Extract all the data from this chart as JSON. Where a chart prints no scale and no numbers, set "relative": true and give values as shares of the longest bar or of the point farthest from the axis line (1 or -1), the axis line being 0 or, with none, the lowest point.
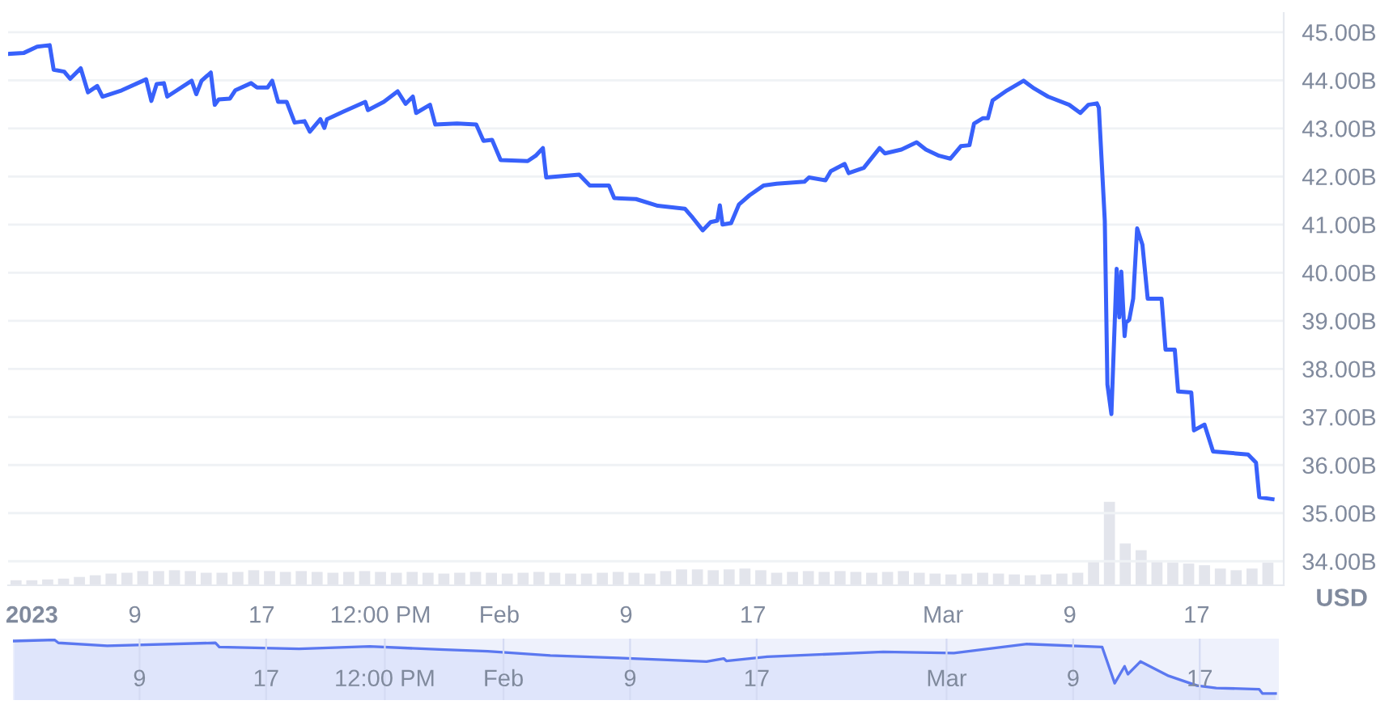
{
  "chart_data": [
    {
      "type": "line",
      "ylabel": "USD",
      "grid": "y",
      "x": [
        "2023-01-01T02:00",
        "2023-01-02T00:00",
        "2023-01-02T20:00",
        "2023-01-03T15:00",
        "2023-01-03T21:00",
        "2023-01-04T13:00",
        "2023-01-04T22:00",
        "2023-01-05T14:00",
        "2023-01-06T01:00",
        "2023-01-06T15:00",
        "2023-01-06T23:00",
        "2023-01-08T04:00",
        "2023-01-09T17:00",
        "2023-01-10T01:00",
        "2023-01-10T09:00",
        "2023-01-10T20:00",
        "2023-01-11T01:00",
        "2023-01-12T14:00",
        "2023-01-12T21:00",
        "2023-01-13T05:00",
        "2023-01-13T19:00",
        "2023-01-14T01:00",
        "2023-01-14T07:00",
        "2023-01-15T00:00",
        "2023-01-15T08:00",
        "2023-01-16T08:00",
        "2023-01-16T17:00",
        "2023-01-17T09:00",
        "2023-01-17T16:00",
        "2023-01-18T01:00",
        "2023-01-18T14:00",
        "2023-01-19T02:00",
        "2023-01-19T17:00",
        "2023-01-20T01:00",
        "2023-01-20T17:00",
        "2023-01-20T23:00",
        "2023-01-21T03:00",
        "2023-01-22T04:00",
        "2023-01-23T13:00",
        "2023-01-23T17:00",
        "2023-01-24T17:00",
        "2023-01-25T14:00",
        "2023-01-26T02:00",
        "2023-01-26T13:00",
        "2023-01-26T18:00",
        "2023-01-27T15:00",
        "2023-01-27T23:00",
        "2023-01-29T08:00",
        "2023-01-30T13:00",
        "2023-01-31T00:00",
        "2023-01-31T13:00",
        "2023-02-01T02:00",
        "2023-02-02T19:00",
        "2023-02-03T07:00",
        "2023-02-03T18:00",
        "2023-02-03T23:00",
        "2023-02-06T01:00",
        "2023-02-06T17:00",
        "2023-02-07T22:00",
        "2023-02-08T06:00",
        "2023-02-09T15:00",
        "2023-02-11T00:00",
        "2023-02-12T17:00",
        "2023-02-13T05:00",
        "2023-02-13T20:00",
        "2023-02-14T08:00",
        "2023-02-14T18:00",
        "2023-02-14T22:00",
        "2023-02-15T02:00",
        "2023-02-15T15:00",
        "2023-02-16T03:00",
        "2023-02-16T19:00",
        "2023-02-17T16:00",
        "2023-02-18T12:00",
        "2023-02-20T06:00",
        "2023-02-20T13:00",
        "2023-02-21T14:00",
        "2023-02-21T22:00",
        "2023-02-22T19:00",
        "2023-02-23T01:00",
        "2023-02-24T00:00",
        "2023-02-25T00:00",
        "2023-02-25T08:00",
        "2023-02-26T09:00",
        "2023-02-27T08:00",
        "2023-02-27T22:00",
        "2023-02-28T18:00",
        "2023-03-01T11:00",
        "2023-03-02T03:00",
        "2023-03-02T16:00",
        "2023-03-02T23:00",
        "2023-03-03T12:00",
        "2023-03-03T20:00",
        "2023-03-04T03:00",
        "2023-03-05T01:00",
        "2023-03-06T02:00",
        "2023-03-06T18:00",
        "2023-03-07T15:00",
        "2023-03-08T23:00",
        "2023-03-09T16:00",
        "2023-03-10T04:00",
        "2023-03-10T17:00",
        "2023-03-10T20:00",
        "2023-03-11T05:00",
        "2023-03-11T09:00",
        "2023-03-11T15:00",
        "2023-03-11T23:00",
        "2023-03-12T03:00",
        "2023-03-12T06:00",
        "2023-03-12T11:00",
        "2023-03-12T13:00",
        "2023-03-12T18:00",
        "2023-03-13T00:00",
        "2023-03-13T06:00",
        "2023-03-13T14:00",
        "2023-03-13T22:00",
        "2023-03-14T19:00",
        "2023-03-15T01:00",
        "2023-03-15T15:00",
        "2023-03-15T20:00",
        "2023-03-16T16:00",
        "2023-03-16T20:00",
        "2023-03-17T12:00",
        "2023-03-18T01:00",
        "2023-03-20T06:00",
        "2023-03-20T18:00",
        "2023-03-20T23:00",
        "2023-03-21T19:00"
      ],
      "series": [
        {
          "color": "#3861fb",
          "values": [
            44.55,
            44.57,
            44.7,
            44.73,
            44.22,
            44.18,
            44.03,
            44.25,
            43.75,
            43.88,
            43.66,
            43.79,
            44.02,
            43.57,
            43.92,
            43.94,
            43.66,
            43.99,
            43.71,
            43.99,
            44.16,
            43.49,
            43.6,
            43.62,
            43.79,
            43.94,
            43.85,
            43.85,
            43.99,
            43.55,
            43.55,
            43.12,
            43.15,
            42.93,
            43.19,
            43.01,
            43.19,
            43.35,
            43.55,
            43.38,
            43.55,
            43.77,
            43.51,
            43.66,
            43.32,
            43.49,
            43.08,
            43.1,
            43.08,
            42.74,
            42.76,
            42.34,
            42.32,
            42.43,
            42.59,
            41.98,
            42.04,
            41.81,
            41.81,
            41.55,
            41.53,
            41.39,
            41.33,
            41.14,
            40.88,
            41.05,
            41.08,
            41.4,
            41.0,
            41.03,
            41.42,
            41.61,
            41.81,
            41.85,
            41.89,
            41.98,
            41.92,
            42.11,
            42.26,
            42.07,
            42.18,
            42.59,
            42.48,
            42.56,
            42.71,
            42.56,
            42.43,
            42.37,
            42.63,
            42.65,
            43.1,
            43.21,
            43.21,
            43.58,
            43.79,
            43.99,
            43.83,
            43.66,
            43.49,
            43.32,
            43.49,
            43.52,
            43.43,
            41.08,
            37.67,
            37.06,
            40.08,
            39.07,
            40.02,
            38.68,
            38.96,
            39.02,
            39.46,
            40.92,
            40.58,
            39.46,
            39.46,
            38.4,
            38.4,
            37.53,
            37.51,
            36.72,
            36.84,
            36.28,
            36.22,
            36.05,
            35.33,
            35.29
          ]
        }
      ],
      "xlim": [
        "2023-01-01T00:00",
        "2023-03-22T12:00"
      ],
      "xticks": [
        {
          "value": "2023-01-02T12:00",
          "label": "2023"
        },
        {
          "value": "2023-01-09",
          "label": "9"
        },
        {
          "value": "2023-01-17",
          "label": "17"
        },
        {
          "value": "2023-01-24T12:00",
          "label": "12:00 PM"
        },
        {
          "value": "2023-02-01",
          "label": "Feb"
        },
        {
          "value": "2023-02-09",
          "label": "9"
        },
        {
          "value": "2023-02-17",
          "label": "17"
        },
        {
          "value": "2023-03-01",
          "label": "Mar"
        },
        {
          "value": "2023-03-09",
          "label": "9"
        },
        {
          "value": "2023-03-17",
          "label": "17"
        }
      ],
      "ylim": [
        33.5,
        45.4
      ],
      "yticks": [
        {
          "value": 34,
          "label": "34.00B"
        },
        {
          "value": 35,
          "label": "35.00B"
        },
        {
          "value": 36,
          "label": "36.00B"
        },
        {
          "value": 37,
          "label": "37.00B"
        },
        {
          "value": 38,
          "label": "38.00B"
        },
        {
          "value": 39,
          "label": "39.00B"
        },
        {
          "value": 40,
          "label": "40.00B"
        },
        {
          "value": 41,
          "label": "41.00B"
        },
        {
          "value": 42,
          "label": "42.00B"
        },
        {
          "value": 43,
          "label": "43.00B"
        },
        {
          "value": 44,
          "label": "44.00B"
        },
        {
          "value": 45,
          "label": "45.00B"
        }
      ]
    },
    {
      "type": "bar",
      "relative": true,
      "tick_labels": false,
      "color": "#e3e5ec",
      "x": [
        "2023-01-01T12:00",
        "2023-01-02T12:00",
        "2023-01-03T12:00",
        "2023-01-04T12:00",
        "2023-01-05T12:00",
        "2023-01-06T12:00",
        "2023-01-07T12:00",
        "2023-01-08T12:00",
        "2023-01-09T12:00",
        "2023-01-10T12:00",
        "2023-01-11T12:00",
        "2023-01-12T12:00",
        "2023-01-13T12:00",
        "2023-01-14T12:00",
        "2023-01-15T12:00",
        "2023-01-16T12:00",
        "2023-01-17T12:00",
        "2023-01-18T12:00",
        "2023-01-19T12:00",
        "2023-01-20T12:00",
        "2023-01-21T12:00",
        "2023-01-22T12:00",
        "2023-01-23T12:00",
        "2023-01-24T12:00",
        "2023-01-25T12:00",
        "2023-01-26T12:00",
        "2023-01-27T12:00",
        "2023-01-28T12:00",
        "2023-01-29T12:00",
        "2023-01-30T12:00",
        "2023-01-31T12:00",
        "2023-02-01T12:00",
        "2023-02-02T12:00",
        "2023-02-03T12:00",
        "2023-02-04T12:00",
        "2023-02-05T12:00",
        "2023-02-06T12:00",
        "2023-02-07T12:00",
        "2023-02-08T12:00",
        "2023-02-09T12:00",
        "2023-02-10T12:00",
        "2023-02-11T12:00",
        "2023-02-12T12:00",
        "2023-02-13T12:00",
        "2023-02-14T12:00",
        "2023-02-15T12:00",
        "2023-02-16T12:00",
        "2023-02-17T12:00",
        "2023-02-18T12:00",
        "2023-02-19T12:00",
        "2023-02-20T12:00",
        "2023-02-21T12:00",
        "2023-02-22T12:00",
        "2023-02-23T12:00",
        "2023-02-24T12:00",
        "2023-02-25T12:00",
        "2023-02-26T12:00",
        "2023-02-27T12:00",
        "2023-02-28T12:00",
        "2023-03-01T12:00",
        "2023-03-02T12:00",
        "2023-03-03T12:00",
        "2023-03-04T12:00",
        "2023-03-05T12:00",
        "2023-03-06T12:00",
        "2023-03-07T12:00",
        "2023-03-08T12:00",
        "2023-03-09T12:00",
        "2023-03-10T12:00",
        "2023-03-11T12:00",
        "2023-03-12T12:00",
        "2023-03-13T12:00",
        "2023-03-14T12:00",
        "2023-03-15T12:00",
        "2023-03-16T12:00",
        "2023-03-17T12:00",
        "2023-03-18T12:00",
        "2023-03-19T12:00",
        "2023-03-20T12:00",
        "2023-03-21T12:00"
      ],
      "values": [
        0.06,
        0.06,
        0.07,
        0.08,
        0.1,
        0.12,
        0.14,
        0.15,
        0.17,
        0.17,
        0.18,
        0.17,
        0.15,
        0.15,
        0.16,
        0.18,
        0.17,
        0.16,
        0.17,
        0.16,
        0.15,
        0.16,
        0.17,
        0.16,
        0.15,
        0.16,
        0.15,
        0.14,
        0.15,
        0.16,
        0.15,
        0.14,
        0.15,
        0.16,
        0.15,
        0.14,
        0.14,
        0.15,
        0.16,
        0.15,
        0.14,
        0.17,
        0.19,
        0.19,
        0.18,
        0.19,
        0.2,
        0.18,
        0.15,
        0.16,
        0.17,
        0.16,
        0.17,
        0.16,
        0.15,
        0.16,
        0.17,
        0.15,
        0.14,
        0.13,
        0.14,
        0.15,
        0.14,
        0.13,
        0.12,
        0.13,
        0.14,
        0.15,
        0.3,
        1.0,
        0.5,
        0.42,
        0.3,
        0.27,
        0.26,
        0.24,
        0.2,
        0.18,
        0.2,
        0.27
      ],
      "xlim": [
        "2023-01-01T00:00",
        "2023-03-22T12:00"
      ]
    },
    {
      "type": "area",
      "relative": true,
      "tick_labels": "x",
      "grid": "x",
      "color": "#5b78f0",
      "x": [
        "2023-01-01T02:00",
        "2023-01-03T15:00",
        "2023-01-03T21:00",
        "2023-01-06T23:00",
        "2023-01-13T19:00",
        "2023-01-14T01:00",
        "2023-01-19T02:00",
        "2023-01-23T13:00",
        "2023-01-27T23:00",
        "2023-01-31T00:00",
        "2023-02-03T23:00",
        "2023-02-08T06:00",
        "2023-02-13T20:00",
        "2023-02-14T22:00",
        "2023-02-15T02:00",
        "2023-02-17T16:00",
        "2023-02-25T00:00",
        "2023-03-01T11:00",
        "2023-03-06T02:00",
        "2023-03-10T20:00",
        "2023-03-11T15:00",
        "2023-03-12T06:00",
        "2023-03-12T11:00",
        "2023-03-13T06:00",
        "2023-03-15T01:00",
        "2023-03-16T20:00",
        "2023-03-18T01:00",
        "2023-03-20T18:00",
        "2023-03-20T23:00",
        "2023-03-21T19:00"
      ],
      "values": [
        0.98,
        1.0,
        0.95,
        0.9,
        0.95,
        0.88,
        0.85,
        0.89,
        0.84,
        0.81,
        0.74,
        0.7,
        0.64,
        0.69,
        0.65,
        0.72,
        0.8,
        0.78,
        0.93,
        0.88,
        0.28,
        0.56,
        0.43,
        0.64,
        0.4,
        0.24,
        0.2,
        0.18,
        0.11,
        0.11
      ],
      "xlim": [
        "2023-01-01T00:00",
        "2023-03-22T00:00"
      ],
      "xticks": [
        {
          "value": "2023-01-09",
          "label": "9"
        },
        {
          "value": "2023-01-17",
          "label": "17"
        },
        {
          "value": "2023-01-24T12:00",
          "label": "12:00 PM"
        },
        {
          "value": "2023-02-01",
          "label": "Feb"
        },
        {
          "value": "2023-02-09",
          "label": "9"
        },
        {
          "value": "2023-02-17",
          "label": "17"
        },
        {
          "value": "2023-03-01",
          "label": "Mar"
        },
        {
          "value": "2023-03-09",
          "label": "9"
        },
        {
          "value": "2023-03-17",
          "label": "17"
        }
      ]
    }
  ]
}
